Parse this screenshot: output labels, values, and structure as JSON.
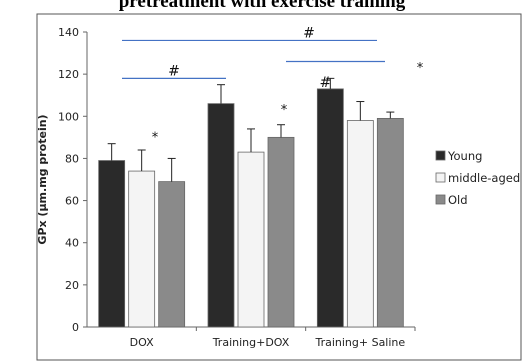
{
  "chart_data": {
    "type": "bar",
    "title": "pretreatment with exercise training",
    "ylabel": "GPx (µm.mg protein)",
    "xlabel": "",
    "ylim": [
      0,
      140
    ],
    "yticks": [
      0,
      20,
      40,
      60,
      80,
      100,
      120,
      140
    ],
    "categories": [
      "DOX",
      "Training+DOX",
      "Training+ Saline"
    ],
    "series": [
      {
        "name": "Young",
        "values": [
          79,
          106,
          113
        ],
        "errors": [
          8,
          9,
          5
        ],
        "color": "#2a2a2a"
      },
      {
        "name": "middle-aged",
        "values": [
          74,
          83,
          98
        ],
        "errors": [
          10,
          11,
          9
        ],
        "color": "#f4f4f4"
      },
      {
        "name": "Old",
        "values": [
          69,
          90,
          99
        ],
        "errors": [
          11,
          6,
          3
        ],
        "color": "#8a8a8a"
      }
    ],
    "legend_position": "right",
    "grid": false,
    "significance_color": "#4472c4",
    "annotations": {
      "hash": "#",
      "star": "*"
    }
  }
}
